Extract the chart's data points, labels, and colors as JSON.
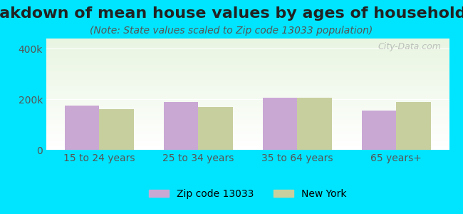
{
  "title": "Breakdown of mean house values by ages of householders",
  "subtitle": "(Note: State values scaled to Zip code 13033 population)",
  "categories": [
    "15 to 24 years",
    "25 to 34 years",
    "35 to 64 years",
    "65 years+"
  ],
  "zip_values": [
    175000,
    190000,
    205000,
    155000
  ],
  "ny_values": [
    162000,
    168000,
    207000,
    190000
  ],
  "zip_color": "#c9a8d4",
  "ny_color": "#c8cf9e",
  "zip_label": "Zip code 13033",
  "ny_label": "New York",
  "ylim": [
    0,
    440000
  ],
  "yticks": [
    0,
    200000,
    400000
  ],
  "ytick_labels": [
    "0",
    "200k",
    "400k"
  ],
  "background_outer": "#00e5ff",
  "bar_width": 0.35,
  "watermark": "City-Data.com",
  "title_fontsize": 16,
  "subtitle_fontsize": 10,
  "tick_fontsize": 10,
  "legend_fontsize": 10
}
